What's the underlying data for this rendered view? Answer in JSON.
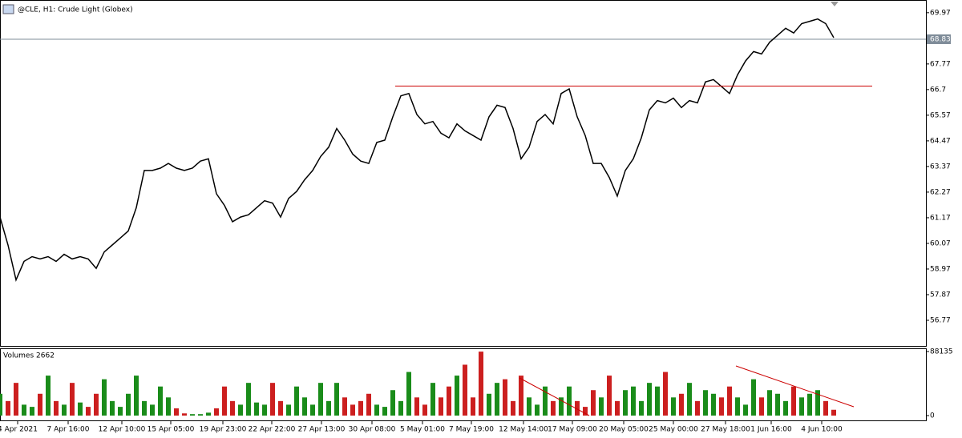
{
  "chart_data": [
    {
      "type": "line",
      "title": "@CLE, H1:  Crude Light (Globex)",
      "color": "#000000",
      "x": [
        0,
        1,
        2,
        3,
        4,
        5,
        6,
        7,
        8,
        9,
        10,
        11,
        12,
        13,
        14,
        15,
        16,
        17,
        18,
        19,
        20,
        21,
        22,
        23,
        24,
        25,
        26,
        27,
        28,
        29,
        30,
        31,
        32,
        33,
        34,
        35,
        36,
        37,
        38,
        39,
        40,
        41,
        42,
        43,
        44,
        45,
        46,
        47,
        48,
        49,
        50,
        51,
        52,
        53,
        54,
        55,
        56,
        57,
        58,
        59,
        60,
        61,
        62,
        63,
        64,
        65,
        66,
        67,
        68,
        69,
        70,
        71,
        72,
        73,
        74,
        75,
        76,
        77,
        78,
        79,
        80,
        81,
        82,
        83,
        84,
        85,
        86,
        87,
        88,
        89,
        90,
        91,
        92,
        93,
        94,
        95,
        96,
        97,
        98,
        99,
        100,
        101,
        102,
        103,
        104
      ],
      "values": [
        61.2,
        60.0,
        58.5,
        59.3,
        59.5,
        59.4,
        59.5,
        59.3,
        59.6,
        59.4,
        59.5,
        59.4,
        59.0,
        59.7,
        60.0,
        60.3,
        60.6,
        61.6,
        63.2,
        63.2,
        63.3,
        63.5,
        63.3,
        63.2,
        63.3,
        63.6,
        63.7,
        62.2,
        61.7,
        61.0,
        61.2,
        61.3,
        61.6,
        61.9,
        61.8,
        61.2,
        62.0,
        62.3,
        62.8,
        63.2,
        63.8,
        64.2,
        65.0,
        64.5,
        63.9,
        63.6,
        63.5,
        64.4,
        64.5,
        65.5,
        66.4,
        66.5,
        65.6,
        65.2,
        65.3,
        64.8,
        64.6,
        65.2,
        64.9,
        64.7,
        64.5,
        65.5,
        66.0,
        65.9,
        65.0,
        63.7,
        64.2,
        65.3,
        65.6,
        65.2,
        66.5,
        66.7,
        65.5,
        64.7,
        63.5,
        63.5,
        62.9,
        62.1,
        63.2,
        63.7,
        64.6,
        65.8,
        66.2,
        66.1,
        66.3,
        65.9,
        66.2,
        66.1,
        67.0,
        67.1,
        66.8,
        66.5,
        67.3,
        67.9,
        68.3,
        68.2,
        68.7,
        69.0,
        69.3,
        69.1,
        69.5,
        69.6,
        69.7,
        69.5,
        68.9
      ],
      "xlim": [
        0,
        115.5
      ],
      "xticks": [
        {
          "value": 2.2,
          "label": "4 Apr 2021"
        },
        {
          "value": 8.5,
          "label": "7 Apr 16:00"
        },
        {
          "value": 15.2,
          "label": "12 Apr 10:00"
        },
        {
          "value": 21.3,
          "label": "15 Apr 05:00"
        },
        {
          "value": 27.8,
          "label": "19 Apr 23:00"
        },
        {
          "value": 33.9,
          "label": "22 Apr 22:00"
        },
        {
          "value": 40.1,
          "label": "27 Apr 13:00"
        },
        {
          "value": 46.4,
          "label": "30 Apr 08:00"
        },
        {
          "value": 52.7,
          "label": "5 May 01:00"
        },
        {
          "value": 58.8,
          "label": "7 May 19:00"
        },
        {
          "value": 65.3,
          "label": "12 May 14:00"
        },
        {
          "value": 71.4,
          "label": "17 May 09:00"
        },
        {
          "value": 77.8,
          "label": "20 May 05:00"
        },
        {
          "value": 84.0,
          "label": "25 May 00:00"
        },
        {
          "value": 90.5,
          "label": "27 May 18:00"
        },
        {
          "value": 96.2,
          "label": "1 Jun 16:00"
        },
        {
          "value": 102.5,
          "label": "4 Jun 10:00"
        }
      ],
      "ylim": [
        55.67,
        70.48
      ],
      "yticks": [
        69.97,
        67.77,
        {
          "value": 66.67,
          "label": "66.7"
        },
        65.57,
        64.47,
        63.37,
        62.27,
        61.17,
        60.07,
        58.97,
        57.87,
        56.77
      ],
      "current_price": 68.83,
      "current_price_color": "#7f8c99",
      "trendline": {
        "x": [
          49.3,
          108.8
        ],
        "y": [
          66.82,
          66.82
        ],
        "color": "#cc0000"
      }
    },
    {
      "type": "bar",
      "title": "Volumes 2662",
      "up_color": "#1a8c1a",
      "down_color": "#cc1f1f",
      "values": [
        30000,
        20000,
        45000,
        15000,
        12000,
        30000,
        55000,
        20000,
        15000,
        45000,
        18000,
        12000,
        30000,
        50000,
        20000,
        12000,
        30000,
        55000,
        20000,
        15000,
        40000,
        25000,
        10000,
        3000,
        2000,
        2000,
        4000,
        10000,
        40000,
        20000,
        15000,
        45000,
        18000,
        15000,
        45000,
        20000,
        15000,
        40000,
        25000,
        15000,
        45000,
        20000,
        45000,
        25000,
        15000,
        20000,
        30000,
        15000,
        12000,
        35000,
        20000,
        60000,
        25000,
        15000,
        45000,
        25000,
        40000,
        55000,
        70000,
        25000,
        88000,
        30000,
        45000,
        50000,
        20000,
        55000,
        25000,
        15000,
        40000,
        20000,
        25000,
        40000,
        20000,
        12000,
        35000,
        25000,
        55000,
        20000,
        35000,
        40000,
        20000,
        45000,
        40000,
        60000,
        25000,
        30000,
        45000,
        20000,
        35000,
        30000,
        25000,
        40000,
        25000,
        15000,
        50000,
        25000,
        35000,
        30000,
        20000,
        40000,
        25000,
        30000,
        35000,
        20000,
        8000
      ],
      "ylim": [
        -6610,
        91440
      ],
      "yticks": [
        88135,
        0
      ],
      "trendlines": [
        {
          "x": [
            64.8,
            73.5
          ],
          "y": [
            51780,
            0
          ],
          "color": "#cc0000"
        },
        {
          "x": [
            91.8,
            106.5
          ],
          "y": [
            68300,
            12120
          ],
          "color": "#cc0000"
        }
      ]
    }
  ]
}
